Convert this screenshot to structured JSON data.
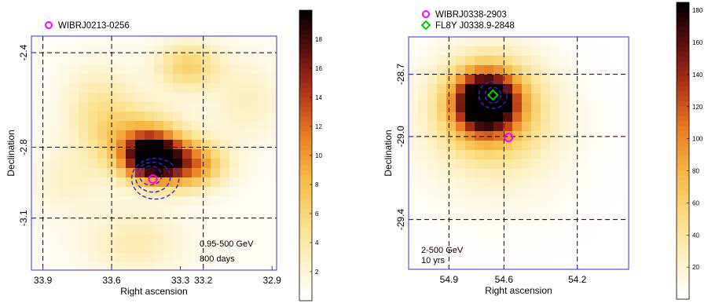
{
  "chart_data": [
    {
      "type": "heatmap",
      "title": "",
      "xlabel": "Right ascension",
      "ylabel": "Declination",
      "xlim": [
        33.95,
        32.88
      ],
      "ylim": [
        -3.32,
        -2.33
      ],
      "x_ticks": [
        "33.9",
        "33.6",
        "33.3",
        "33.2",
        "32.9"
      ],
      "x_tick_values": [
        33.9,
        33.6,
        33.3,
        33.2,
        32.9
      ],
      "x_grid": [
        33.9,
        33.6,
        33.2
      ],
      "y_ticks": [
        "-2.4",
        "-2.8",
        "-3.1"
      ],
      "y_tick_values": [
        -2.4,
        -2.8,
        -3.1
      ],
      "legend": [
        {
          "label": "WIBRJ0213-0256",
          "marker": "circle",
          "color": "#ff00ff",
          "x": 33.42,
          "y": -2.935
        }
      ],
      "annotations": [
        "0.95-500 GeV",
        "800 days"
      ],
      "colorbar": {
        "ticks": [
          "2",
          "4",
          "6",
          "8",
          "10",
          "12",
          "14",
          "16",
          "18"
        ],
        "tick_values": [
          2,
          4,
          6,
          8,
          10,
          12,
          14,
          16,
          18
        ],
        "range": [
          0,
          20
        ]
      },
      "peak": {
        "x": 33.43,
        "y": -2.92,
        "value": 20
      },
      "contours": 3,
      "grid": true
    },
    {
      "type": "heatmap",
      "title": "",
      "xlabel": "Right ascension",
      "ylabel": "Declination",
      "xlim": [
        55.12,
        53.92
      ],
      "ylim": [
        -29.64,
        -28.52
      ],
      "x_ticks": [
        "54.9",
        "54.6",
        "54.2"
      ],
      "x_tick_values": [
        54.9,
        54.6,
        54.2
      ],
      "x_grid": [
        54.9,
        54.6,
        54.2
      ],
      "y_ticks": [
        "-28.7",
        "-29.0",
        "-29.4"
      ],
      "y_tick_values": [
        -28.7,
        -29.0,
        -29.4
      ],
      "legend": [
        {
          "label": "WIBRJ0338-2903",
          "marker": "circle",
          "color": "#ff00ff",
          "x": 54.575,
          "y": -29.005
        },
        {
          "label": "FL8Y J0338.9-2848",
          "marker": "diamond",
          "color": "#00cc00",
          "x": 54.66,
          "y": -28.8
        }
      ],
      "annotations": [
        "2-500 GeV",
        "10 yrs"
      ],
      "colorbar": {
        "ticks": [
          "20",
          "40",
          "60",
          "80",
          "100",
          "120",
          "140",
          "160",
          "180"
        ],
        "tick_values": [
          20,
          40,
          60,
          80,
          100,
          120,
          140,
          160,
          180
        ],
        "range": [
          0,
          185
        ]
      },
      "peak": {
        "x": 54.66,
        "y": -28.8,
        "value": 185
      },
      "contours": 2,
      "grid": true
    }
  ]
}
